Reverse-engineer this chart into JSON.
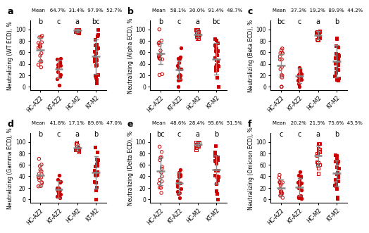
{
  "panels": [
    {
      "label": "a",
      "ylabel": "Neutralizing (WT ECD), %",
      "means": [
        64.7,
        31.4,
        97.9,
        52.7
      ],
      "sds": [
        20,
        16,
        3,
        30
      ],
      "sig_letters": [
        "b",
        "c",
        "a",
        "bc"
      ]
    },
    {
      "label": "b",
      "ylabel": "Neutralizing (Alpha ECD), %",
      "means": [
        58.1,
        30.0,
        91.4,
        48.7
      ],
      "sds": [
        18,
        16,
        5,
        28
      ],
      "sig_letters": [
        "b",
        "c",
        "a",
        "bc"
      ]
    },
    {
      "label": "c",
      "ylabel": "Neutralizing (Beta ECD), %",
      "means": [
        37.3,
        19.2,
        89.9,
        44.2
      ],
      "sds": [
        20,
        13,
        7,
        28
      ],
      "sig_letters": [
        "bc",
        "c",
        "a",
        "b"
      ]
    },
    {
      "label": "d",
      "ylabel": "Neutralizing (Gamma ECD), %",
      "means": [
        41.8,
        17.1,
        89.6,
        47.0
      ],
      "sds": [
        18,
        15,
        5,
        28
      ],
      "sig_letters": [
        "b",
        "c",
        "a",
        "b"
      ]
    },
    {
      "label": "e",
      "ylabel": "Neutralizing (Delta ECD), %",
      "means": [
        48.6,
        28.4,
        95.6,
        51.5
      ],
      "sds": [
        24,
        18,
        4,
        25
      ],
      "sig_letters": [
        "bc",
        "c",
        "a",
        "b"
      ]
    },
    {
      "label": "f",
      "ylabel": "Neutralizing (Omicron ECD), %",
      "means": [
        20.2,
        21.5,
        75.6,
        45.5
      ],
      "sds": [
        14,
        15,
        18,
        22
      ],
      "sig_letters": [
        "c",
        "c",
        "a",
        "b"
      ]
    }
  ],
  "group_labels": [
    "HC-AZ2",
    "KT-AZ2",
    "HC-M2",
    "KT-M2"
  ],
  "n_per_group": [
    15,
    17,
    15,
    23
  ],
  "red": "#CC0000",
  "gray": "#888888",
  "yticks": [
    0,
    20,
    40,
    60,
    80,
    100
  ],
  "ylim": [
    -6,
    115
  ]
}
